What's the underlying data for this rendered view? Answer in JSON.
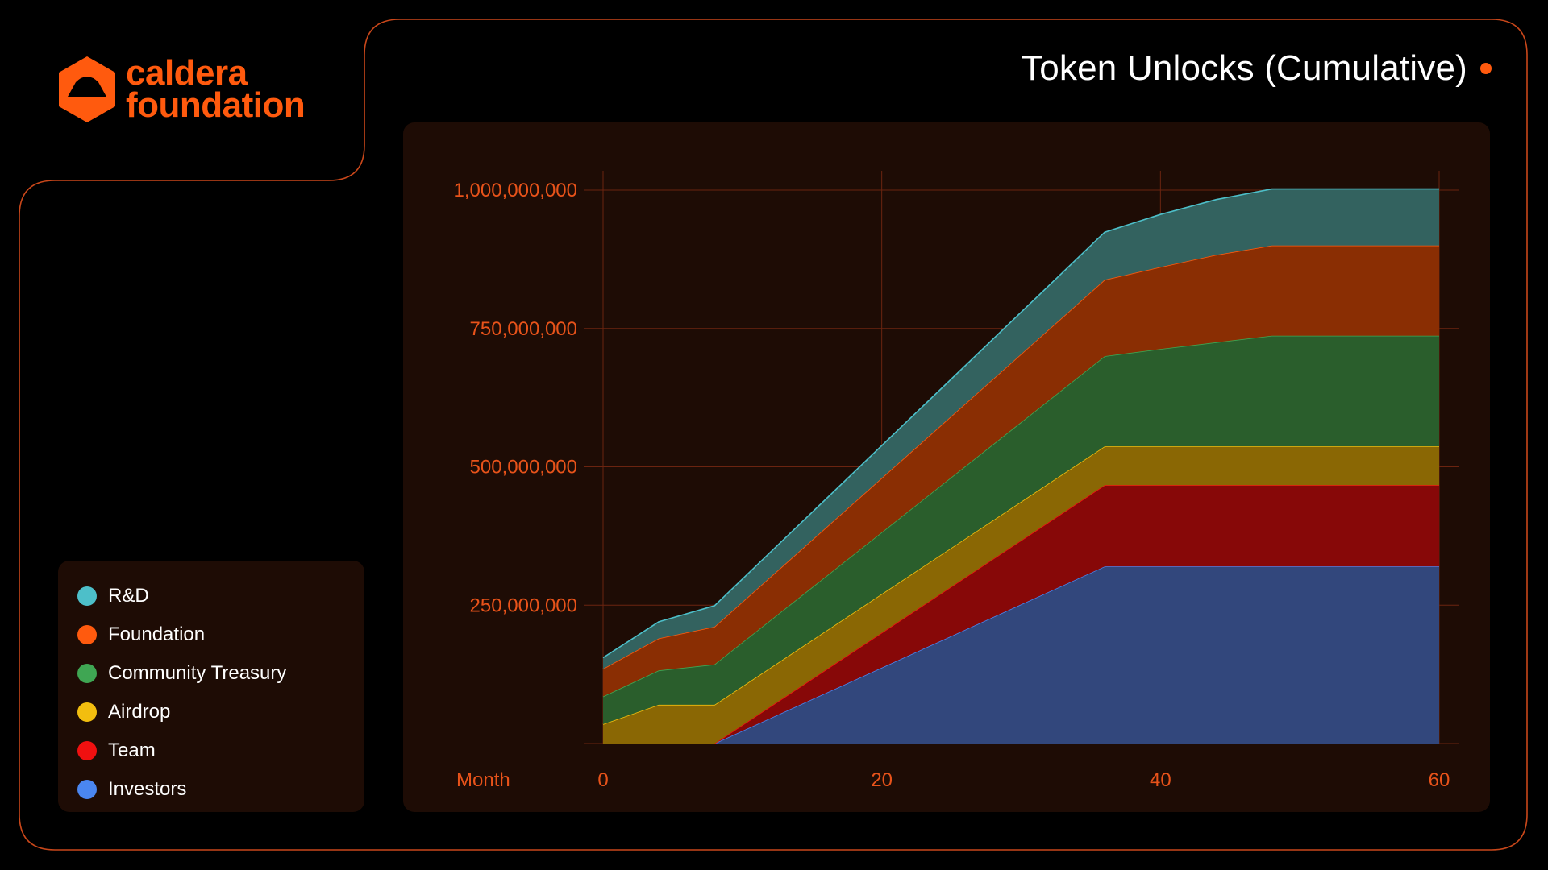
{
  "brand": {
    "line1": "caldera",
    "line2": "foundation",
    "logo_icon": "caldera-logo-icon",
    "color": "#FF5A0E"
  },
  "colors": {
    "background": "#000000",
    "panel": "#1E0C05",
    "accent": "#FF5A0E",
    "frame_stroke": "#C9471A",
    "grid": "#6B2410",
    "tick": "#E8531A"
  },
  "legend": {
    "items": [
      {
        "label": "R&D",
        "color": "#4DBFC9"
      },
      {
        "label": "Foundation",
        "color": "#FF5A0E"
      },
      {
        "label": "Community Treasury",
        "color": "#3FA653"
      },
      {
        "label": "Airdrop",
        "color": "#F2BE0F"
      },
      {
        "label": "Team",
        "color": "#F01010"
      },
      {
        "label": "Investors",
        "color": "#4A86F0"
      }
    ]
  },
  "chart_data": {
    "type": "area",
    "stacked": true,
    "title": "Token Unlocks (Cumulative)",
    "xlabel": "Month",
    "ylabel": "",
    "xlim": [
      0,
      60
    ],
    "ylim": [
      0,
      1000000000
    ],
    "x_ticks": [
      0,
      20,
      40,
      60
    ],
    "x_tick_labels": [
      "0",
      "20",
      "40",
      "60"
    ],
    "y_ticks": [
      250000000,
      500000000,
      750000000,
      1000000000
    ],
    "y_tick_labels": [
      "250,000,000",
      "500,000,000",
      "750,000,000",
      "1,000,000,000"
    ],
    "grid": true,
    "legend_position": "left",
    "x": [
      0,
      4,
      8,
      36,
      40,
      44,
      48,
      60
    ],
    "series": [
      {
        "name": "Investors",
        "color": "#4A86F0",
        "fill": "#32477C",
        "values": [
          0,
          0,
          0,
          320000000,
          320000000,
          320000000,
          320000000,
          320000000
        ]
      },
      {
        "name": "Team",
        "color": "#F01010",
        "fill": "#870808",
        "values": [
          0,
          0,
          0,
          147000000,
          147000000,
          147000000,
          147000000,
          147000000
        ]
      },
      {
        "name": "Airdrop",
        "color": "#F2BE0F",
        "fill": "#8A6704",
        "values": [
          35000000,
          70000000,
          70000000,
          70000000,
          70000000,
          70000000,
          70000000,
          70000000
        ]
      },
      {
        "name": "Community Treasury",
        "color": "#3FA653",
        "fill": "#2A5E2C",
        "values": [
          50000000,
          62000000,
          73000000,
          163000000,
          176000000,
          188000000,
          200000000,
          200000000
        ]
      },
      {
        "name": "Foundation",
        "color": "#FF5A0E",
        "fill": "#8A2E03",
        "values": [
          50000000,
          58000000,
          68000000,
          138000000,
          148000000,
          158000000,
          163000000,
          163000000
        ]
      },
      {
        "name": "R&D",
        "color": "#4DBFC9",
        "fill": "#33625F",
        "values": [
          20000000,
          30000000,
          38000000,
          86000000,
          95000000,
          100000000,
          102000000,
          102000000
        ]
      }
    ]
  }
}
